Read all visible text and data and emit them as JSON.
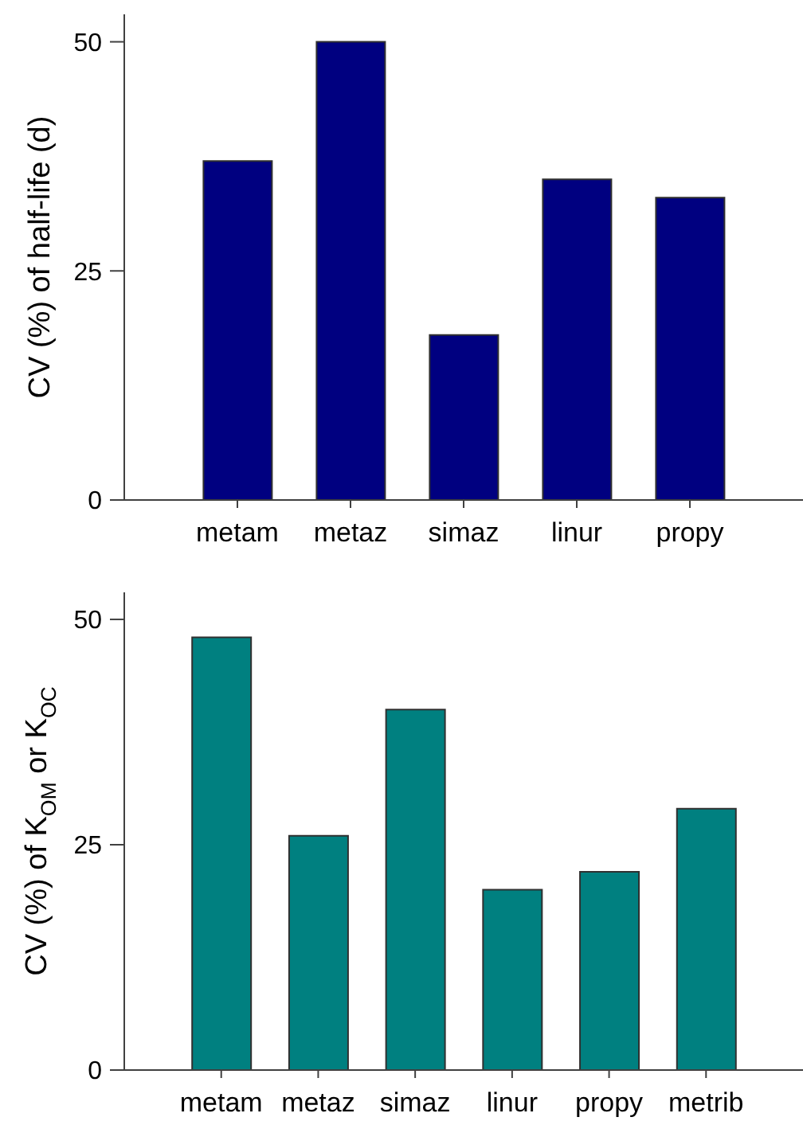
{
  "chart_data": [
    {
      "type": "bar",
      "categories": [
        "metam",
        "metaz",
        "simaz",
        "linur",
        "propy"
      ],
      "values": [
        37,
        50,
        18,
        35,
        33
      ],
      "color": "#000080",
      "ylabel": "CV (%) of half-life (d)",
      "ylim": [
        0,
        53
      ],
      "yticks": [
        0,
        25,
        50
      ]
    },
    {
      "type": "bar",
      "categories": [
        "metam",
        "metaz",
        "simaz",
        "linur",
        "propy",
        "metrib"
      ],
      "values": [
        48,
        26,
        40,
        20,
        22,
        29
      ],
      "color": "#008080",
      "ylabel": "CV (%) of K$_{OM}$ or K$_{OC}$",
      "ylim": [
        0,
        53
      ],
      "yticks": [
        0,
        25,
        50
      ]
    }
  ]
}
